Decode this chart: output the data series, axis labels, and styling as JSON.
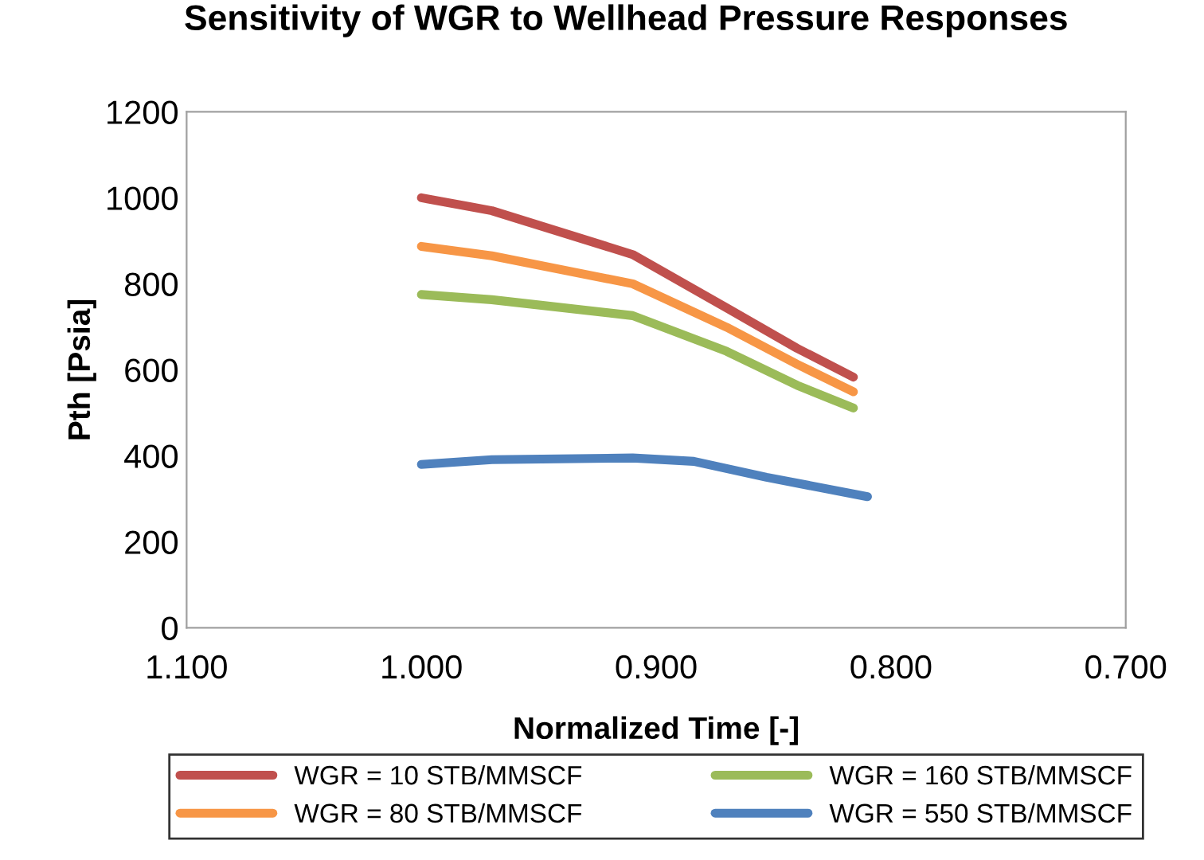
{
  "chart_data": {
    "type": "line",
    "title": "Sensitivity of WGR to Wellhead Pressure Responses",
    "xlabel": "Normalized Time [-]",
    "ylabel": "Pth [Psia]",
    "xlim": [
      1.1,
      0.7
    ],
    "xticks": [
      {
        "value": 1.1,
        "label": "1.100"
      },
      {
        "value": 1.0,
        "label": "1.000"
      },
      {
        "value": 0.9,
        "label": "0.900"
      },
      {
        "value": 0.8,
        "label": "0.800"
      },
      {
        "value": 0.7,
        "label": "0.700"
      }
    ],
    "ylim": [
      0,
      1200
    ],
    "yticks": [
      0,
      200,
      400,
      600,
      800,
      1000,
      1200
    ],
    "grid": false,
    "legend": "bottom",
    "marker": "none",
    "line_style": "solid",
    "series": [
      {
        "name": "WGR = 10 STB/MMSCF",
        "color": "#c0504d",
        "x": [
          1.0,
          0.97,
          0.91,
          0.87,
          0.84,
          0.816
        ],
        "values": [
          1000,
          970,
          868,
          744,
          650,
          583
        ]
      },
      {
        "name": "WGR = 80 STB/MMSCF",
        "color": "#f79646",
        "x": [
          1.0,
          0.97,
          0.91,
          0.87,
          0.84,
          0.816
        ],
        "values": [
          887,
          865,
          800,
          699,
          613,
          549
        ]
      },
      {
        "name": "WGR = 160 STB/MMSCF",
        "color": "#9bbb59",
        "x": [
          1.0,
          0.97,
          0.91,
          0.87,
          0.84,
          0.816
        ],
        "values": [
          775,
          763,
          726,
          643,
          564,
          511
        ]
      },
      {
        "name": "WGR = 550 STB/MMSCF",
        "color": "#4f81bd",
        "x": [
          1.0,
          0.97,
          0.91,
          0.884,
          0.853,
          0.81
        ],
        "values": [
          380,
          391,
          395,
          387,
          350,
          305
        ]
      }
    ]
  }
}
